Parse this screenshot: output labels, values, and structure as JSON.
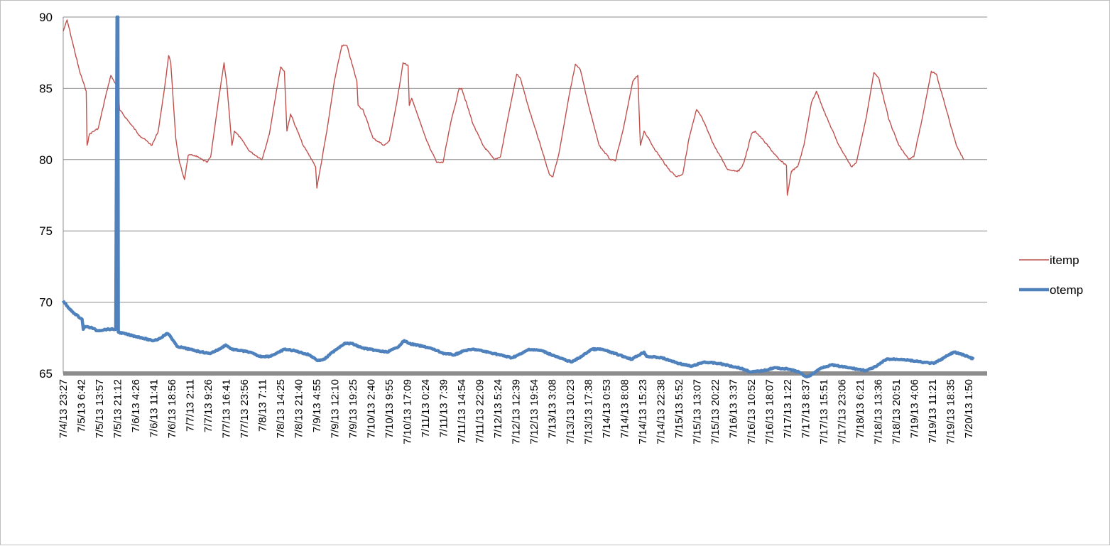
{
  "chart_data": {
    "type": "line",
    "title": "",
    "xlabel": "",
    "ylabel": "",
    "ylim": [
      65,
      90
    ],
    "y_ticks": [
      "65",
      "70",
      "75",
      "80",
      "85",
      "90"
    ],
    "grid": true,
    "legend_position": "right",
    "x_tick_labels": [
      "7/4/13 23:27",
      "7/5/13 6:42",
      "7/5/13 13:57",
      "7/5/13 21:12",
      "7/6/13 4:26",
      "7/6/13 11:41",
      "7/6/13 18:56",
      "7/7/13 2:11",
      "7/7/13 9:26",
      "7/7/13 16:41",
      "7/7/13 23:56",
      "7/8/13 7:11",
      "7/8/13 14:25",
      "7/8/13 21:40",
      "7/9/13 4:55",
      "7/9/13 12:10",
      "7/9/13 19:25",
      "7/10/13 2:40",
      "7/10/13 9:55",
      "7/10/13 17:09",
      "7/11/13 0:24",
      "7/11/13 7:39",
      "7/11/13 14:54",
      "7/11/13 22:09",
      "7/12/13 5:24",
      "7/12/13 12:39",
      "7/12/13 19:54",
      "7/13/13 3:08",
      "7/13/13 10:23",
      "7/13/13 17:38",
      "7/14/13 0:53",
      "7/14/13 8:08",
      "7/14/13 15:23",
      "7/14/13 22:38",
      "7/15/13 5:52",
      "7/15/13 13:07",
      "7/15/13 20:22",
      "7/16/13 3:37",
      "7/16/13 10:52",
      "7/16/13 18:07",
      "7/17/13 1:22",
      "7/17/13 8:37",
      "7/17/13 15:51",
      "7/17/13 23:06",
      "7/18/13 6:21",
      "7/18/13 13:36",
      "7/18/13 20:51",
      "7/19/13 4:06",
      "7/19/13 11:21",
      "7/19/13 18:35",
      "7/20/13 1:50"
    ],
    "series": [
      {
        "name": "itemp",
        "color": "#c0504d",
        "points": [
          [
            "7/4/13 23:27",
            89.0
          ],
          [
            "7/5/13 1:00",
            89.8
          ],
          [
            "7/5/13 3:30",
            88.0
          ],
          [
            "7/5/13 6:00",
            86.2
          ],
          [
            "7/5/13 8:40",
            84.8
          ],
          [
            "7/5/13 9:00",
            81.0
          ],
          [
            "7/5/13 10:00",
            81.8
          ],
          [
            "7/5/13 13:30",
            82.2
          ],
          [
            "7/5/13 16:30",
            84.5
          ],
          [
            "7/5/13 18:30",
            85.9
          ],
          [
            "7/5/13 20:30",
            85.3
          ],
          [
            "7/5/13 21:40",
            84.7
          ],
          [
            "7/5/13 22:00",
            83.5
          ],
          [
            "7/6/13 2:00",
            82.6
          ],
          [
            "7/6/13 6:00",
            81.7
          ],
          [
            "7/6/13 11:00",
            81.0
          ],
          [
            "7/6/13 13:30",
            82.0
          ],
          [
            "7/6/13 16:00",
            85.0
          ],
          [
            "7/6/13 17:40",
            87.3
          ],
          [
            "7/6/13 18:30",
            86.8
          ],
          [
            "7/6/13 20:30",
            81.5
          ],
          [
            "7/6/13 22:00",
            79.8
          ],
          [
            "7/7/13 0:00",
            78.6
          ],
          [
            "7/7/13 1:30",
            80.3
          ],
          [
            "7/7/13 4:00",
            80.3
          ],
          [
            "7/7/13 9:00",
            79.8
          ],
          [
            "7/7/13 10:30",
            80.2
          ],
          [
            "7/7/13 13:30",
            84.0
          ],
          [
            "7/7/13 15:50",
            86.8
          ],
          [
            "7/7/13 17:00",
            85.2
          ],
          [
            "7/7/13 19:00",
            81.0
          ],
          [
            "7/7/13 20:00",
            82.0
          ],
          [
            "7/7/13 22:30",
            81.5
          ],
          [
            "7/8/13 2:00",
            80.6
          ],
          [
            "7/8/13 7:00",
            80.0
          ],
          [
            "7/8/13 10:00",
            81.8
          ],
          [
            "7/8/13 13:00",
            85.0
          ],
          [
            "7/8/13 14:30",
            86.5
          ],
          [
            "7/8/13 16:00",
            86.2
          ],
          [
            "7/8/13 17:00",
            82.0
          ],
          [
            "7/8/13 18:30",
            83.2
          ],
          [
            "7/8/13 23:30",
            81.0
          ],
          [
            "7/9/13 3:00",
            80.0
          ],
          [
            "7/9/13 4:30",
            79.5
          ],
          [
            "7/9/13 5:00",
            78.0
          ],
          [
            "7/9/13 6:30",
            79.5
          ],
          [
            "7/9/13 9:00",
            82.0
          ],
          [
            "7/9/13 12:00",
            85.5
          ],
          [
            "7/9/13 15:00",
            88.0
          ],
          [
            "7/9/13 17:00",
            88.0
          ],
          [
            "7/9/13 21:00",
            85.5
          ],
          [
            "7/9/13 21:30",
            83.8
          ],
          [
            "7/9/13 23:30",
            83.5
          ],
          [
            "7/10/13 3:30",
            81.5
          ],
          [
            "7/10/13 8:00",
            81.0
          ],
          [
            "7/10/13 10:00",
            81.3
          ],
          [
            "7/10/13 13:00",
            84.0
          ],
          [
            "7/10/13 15:30",
            86.8
          ],
          [
            "7/10/13 17:30",
            86.6
          ],
          [
            "7/10/13 18:00",
            83.8
          ],
          [
            "7/10/13 19:00",
            84.3
          ],
          [
            "7/11/13 1:00",
            81.3
          ],
          [
            "7/11/13 5:00",
            79.8
          ],
          [
            "7/11/13 7:30",
            79.8
          ],
          [
            "7/11/13 10:30",
            82.5
          ],
          [
            "7/11/13 14:00",
            85.0
          ],
          [
            "7/11/13 15:00",
            85.0
          ],
          [
            "7/11/13 19:30",
            82.5
          ],
          [
            "7/11/13 23:30",
            81.0
          ],
          [
            "7/12/13 4:00",
            80.0
          ],
          [
            "7/12/13 6:30",
            80.2
          ],
          [
            "7/12/13 9:00",
            82.5
          ],
          [
            "7/12/13 13:00",
            86.0
          ],
          [
            "7/12/13 14:30",
            85.7
          ],
          [
            "7/12/13 18:00",
            83.5
          ],
          [
            "7/12/13 22:30",
            81.0
          ],
          [
            "7/13/13 2:00",
            79.0
          ],
          [
            "7/13/13 3:30",
            78.8
          ],
          [
            "7/13/13 6:00",
            80.5
          ],
          [
            "7/13/13 10:00",
            84.5
          ],
          [
            "7/13/13 12:30",
            86.7
          ],
          [
            "7/13/13 14:30",
            86.3
          ],
          [
            "7/13/13 17:30",
            84.0
          ],
          [
            "7/13/13 22:00",
            81.0
          ],
          [
            "7/14/13 2:30",
            80.0
          ],
          [
            "7/14/13 4:30",
            79.9
          ],
          [
            "7/14/13 7:30",
            82.0
          ],
          [
            "7/14/13 11:30",
            85.5
          ],
          [
            "7/14/13 13:30",
            85.9
          ],
          [
            "7/14/13 14:30",
            81.0
          ],
          [
            "7/14/13 16:00",
            82.0
          ],
          [
            "7/14/13 20:00",
            80.8
          ],
          [
            "7/15/13 1:30",
            79.4
          ],
          [
            "7/15/13 5:00",
            78.8
          ],
          [
            "7/15/13 7:30",
            79.0
          ],
          [
            "7/15/13 10:00",
            81.5
          ],
          [
            "7/15/13 13:00",
            83.5
          ],
          [
            "7/15/13 15:00",
            83.0
          ],
          [
            "7/15/13 20:00",
            81.0
          ],
          [
            "7/16/13 1:30",
            79.3
          ],
          [
            "7/16/13 6:00",
            79.2
          ],
          [
            "7/16/13 8:00",
            79.8
          ],
          [
            "7/16/13 11:00",
            81.8
          ],
          [
            "7/16/13 12:30",
            82.0
          ],
          [
            "7/16/13 16:00",
            81.3
          ],
          [
            "7/16/13 22:00",
            80.0
          ],
          [
            "7/17/13 1:00",
            79.6
          ],
          [
            "7/17/13 1:20",
            77.5
          ],
          [
            "7/17/13 3:00",
            79.2
          ],
          [
            "7/17/13 5:30",
            79.5
          ],
          [
            "7/17/13 8:00",
            81.0
          ],
          [
            "7/17/13 11:00",
            84.0
          ],
          [
            "7/17/13 13:00",
            84.8
          ],
          [
            "7/17/13 17:00",
            83.0
          ],
          [
            "7/17/13 22:00",
            81.0
          ],
          [
            "7/18/13 3:00",
            79.5
          ],
          [
            "7/18/13 5:00",
            79.8
          ],
          [
            "7/18/13 9:00",
            83.0
          ],
          [
            "7/18/13 12:00",
            86.1
          ],
          [
            "7/18/13 14:00",
            85.7
          ],
          [
            "7/18/13 18:00",
            82.8
          ],
          [
            "7/18/13 22:00",
            81.0
          ],
          [
            "7/19/13 2:00",
            80.0
          ],
          [
            "7/19/13 4:00",
            80.2
          ],
          [
            "7/19/13 7:30",
            83.0
          ],
          [
            "7/19/13 11:00",
            86.2
          ],
          [
            "7/19/13 13:00",
            86.0
          ],
          [
            "7/19/13 17:00",
            83.5
          ],
          [
            "7/19/13 21:00",
            81.0
          ],
          [
            "7/20/13 0:00",
            80.0
          ]
        ]
      },
      {
        "name": "otemp",
        "color": "#4f81bd",
        "points": [
          [
            "7/4/13 23:27",
            70.1
          ],
          [
            "7/5/13 1:30",
            69.6
          ],
          [
            "7/5/13 4:00",
            69.2
          ],
          [
            "7/5/13 7:00",
            68.8
          ],
          [
            "7/5/13 7:30",
            68.1
          ],
          [
            "7/5/13 8:00",
            68.3
          ],
          [
            "7/5/13 11:00",
            68.2
          ],
          [
            "7/5/13 13:00",
            68.0
          ],
          [
            "7/5/13 17:00",
            68.1
          ],
          [
            "7/5/13 20:30",
            68.1
          ],
          [
            "7/5/13 21:00",
            90.0
          ],
          [
            "7/5/13 21:20",
            90.0
          ],
          [
            "7/5/13 21:30",
            67.9
          ],
          [
            "7/6/13 2:00",
            67.7
          ],
          [
            "7/6/13 7:00",
            67.5
          ],
          [
            "7/6/13 11:00",
            67.3
          ],
          [
            "7/6/13 13:30",
            67.4
          ],
          [
            "7/6/13 17:00",
            67.8
          ],
          [
            "7/6/13 18:00",
            67.7
          ],
          [
            "7/6/13 21:00",
            66.9
          ],
          [
            "7/7/13 2:00",
            66.7
          ],
          [
            "7/7/13 7:00",
            66.5
          ],
          [
            "7/7/13 10:00",
            66.4
          ],
          [
            "7/7/13 14:00",
            66.7
          ],
          [
            "7/7/13 16:30",
            67.0
          ],
          [
            "7/7/13 19:00",
            66.7
          ],
          [
            "7/8/13 2:00",
            66.5
          ],
          [
            "7/8/13 6:00",
            66.2
          ],
          [
            "7/8/13 10:00",
            66.2
          ],
          [
            "7/8/13 14:00",
            66.5
          ],
          [
            "7/8/13 16:00",
            66.7
          ],
          [
            "7/8/13 20:00",
            66.6
          ],
          [
            "7/9/13 2:00",
            66.3
          ],
          [
            "7/9/13 5:30",
            65.9
          ],
          [
            "7/9/13 8:00",
            66.0
          ],
          [
            "7/9/13 12:00",
            66.6
          ],
          [
            "7/9/13 16:00",
            67.1
          ],
          [
            "7/9/13 19:00",
            67.1
          ],
          [
            "7/9/13 23:00",
            66.8
          ],
          [
            "7/10/13 5:00",
            66.6
          ],
          [
            "7/10/13 9:00",
            66.5
          ],
          [
            "7/10/13 13:00",
            66.8
          ],
          [
            "7/10/13 16:00",
            67.3
          ],
          [
            "7/10/13 18:00",
            67.1
          ],
          [
            "7/11/13 2:00",
            66.8
          ],
          [
            "7/11/13 8:00",
            66.4
          ],
          [
            "7/11/13 12:00",
            66.3
          ],
          [
            "7/11/13 16:00",
            66.6
          ],
          [
            "7/11/13 20:00",
            66.7
          ],
          [
            "7/12/13 4:00",
            66.4
          ],
          [
            "7/12/13 11:00",
            66.1
          ],
          [
            "7/12/13 15:00",
            66.4
          ],
          [
            "7/12/13 18:00",
            66.7
          ],
          [
            "7/12/13 23:00",
            66.6
          ],
          [
            "7/13/13 6:00",
            66.1
          ],
          [
            "7/13/13 11:00",
            65.8
          ],
          [
            "7/13/13 15:00",
            66.2
          ],
          [
            "7/13/13 19:00",
            66.7
          ],
          [
            "7/13/13 23:00",
            66.7
          ],
          [
            "7/14/13 6:00",
            66.3
          ],
          [
            "7/14/13 11:00",
            66.0
          ],
          [
            "7/14/13 16:00",
            66.5
          ],
          [
            "7/14/13 17:00",
            66.2
          ],
          [
            "7/14/13 23:00",
            66.1
          ],
          [
            "7/15/13 6:00",
            65.7
          ],
          [
            "7/15/13 11:00",
            65.5
          ],
          [
            "7/15/13 16:00",
            65.8
          ],
          [
            "7/15/13 22:00",
            65.7
          ],
          [
            "7/16/13 6:00",
            65.4
          ],
          [
            "7/16/13 11:00",
            65.1
          ],
          [
            "7/16/13 16:00",
            65.2
          ],
          [
            "7/16/13 20:00",
            65.4
          ],
          [
            "7/17/13 2:00",
            65.3
          ],
          [
            "7/17/13 6:00",
            65.1
          ],
          [
            "7/17/13 8:30",
            64.8
          ],
          [
            "7/17/13 10:00",
            64.8
          ],
          [
            "7/17/13 15:00",
            65.4
          ],
          [
            "7/17/13 19:00",
            65.6
          ],
          [
            "7/18/13 2:00",
            65.4
          ],
          [
            "7/18/13 9:00",
            65.2
          ],
          [
            "7/18/13 13:00",
            65.5
          ],
          [
            "7/18/13 17:00",
            66.0
          ],
          [
            "7/18/13 23:00",
            66.0
          ],
          [
            "7/19/13 7:00",
            65.8
          ],
          [
            "7/19/13 12:00",
            65.7
          ],
          [
            "7/19/13 16:00",
            66.1
          ],
          [
            "7/19/13 20:00",
            66.5
          ],
          [
            "7/20/13 0:00",
            66.3
          ],
          [
            "7/20/13 4:00",
            66.0
          ]
        ]
      }
    ]
  }
}
